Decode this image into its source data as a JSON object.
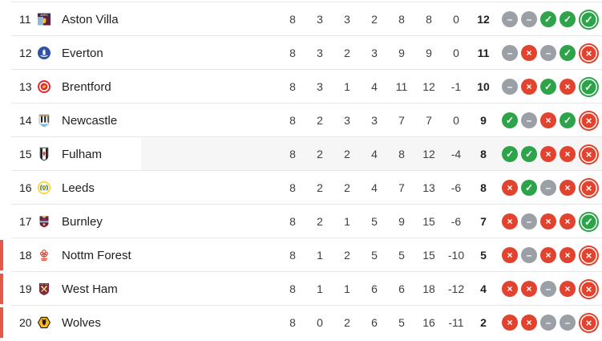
{
  "colors": {
    "win": "#2ea44a",
    "draw": "#9aa0a6",
    "loss": "#e2432f",
    "relegation": "#e25948",
    "separator": "#e8e8e8",
    "highlight": "#f6f6f6",
    "text_primary": "#202124",
    "text_stats": "#3c4043"
  },
  "form_glyphs": {
    "win": "✓",
    "draw": "–",
    "loss": "×"
  },
  "standings": {
    "rows": [
      {
        "position": "11",
        "team": "Aston Villa",
        "crest": "aston-villa-crest-icon",
        "crest_text": "AVFC",
        "stats": {
          "p": "8",
          "w": "3",
          "d": "3",
          "l": "2",
          "gf": "8",
          "ga": "8",
          "gd": "0",
          "pts": "12"
        },
        "form": [
          "draw",
          "draw",
          "win",
          "win",
          "win"
        ],
        "relegation": false,
        "highlighted": false
      },
      {
        "position": "12",
        "team": "Everton",
        "crest": "everton-crest-icon",
        "stats": {
          "p": "8",
          "w": "3",
          "d": "2",
          "l": "3",
          "gf": "9",
          "ga": "9",
          "gd": "0",
          "pts": "11"
        },
        "form": [
          "draw",
          "loss",
          "draw",
          "win",
          "loss"
        ],
        "relegation": false,
        "highlighted": false
      },
      {
        "position": "13",
        "team": "Brentford",
        "crest": "brentford-crest-icon",
        "stats": {
          "p": "8",
          "w": "3",
          "d": "1",
          "l": "4",
          "gf": "11",
          "ga": "12",
          "gd": "-1",
          "pts": "10"
        },
        "form": [
          "draw",
          "loss",
          "win",
          "loss",
          "win"
        ],
        "relegation": false,
        "highlighted": false
      },
      {
        "position": "14",
        "team": "Newcastle",
        "crest": "newcastle-crest-icon",
        "stats": {
          "p": "8",
          "w": "2",
          "d": "3",
          "l": "3",
          "gf": "7",
          "ga": "7",
          "gd": "0",
          "pts": "9"
        },
        "form": [
          "win",
          "draw",
          "loss",
          "win",
          "loss"
        ],
        "relegation": false,
        "highlighted": false
      },
      {
        "position": "15",
        "team": "Fulham",
        "crest": "fulham-crest-icon",
        "stats": {
          "p": "8",
          "w": "2",
          "d": "2",
          "l": "4",
          "gf": "8",
          "ga": "12",
          "gd": "-4",
          "pts": "8"
        },
        "form": [
          "win",
          "win",
          "loss",
          "loss",
          "loss"
        ],
        "relegation": false,
        "highlighted": true
      },
      {
        "position": "16",
        "team": "Leeds",
        "crest": "leeds-crest-icon",
        "stats": {
          "p": "8",
          "w": "2",
          "d": "2",
          "l": "4",
          "gf": "7",
          "ga": "13",
          "gd": "-6",
          "pts": "8"
        },
        "form": [
          "loss",
          "win",
          "draw",
          "loss",
          "loss"
        ],
        "relegation": false,
        "highlighted": false
      },
      {
        "position": "17",
        "team": "Burnley",
        "crest": "burnley-crest-icon",
        "stats": {
          "p": "8",
          "w": "2",
          "d": "1",
          "l": "5",
          "gf": "9",
          "ga": "15",
          "gd": "-6",
          "pts": "7"
        },
        "form": [
          "loss",
          "draw",
          "loss",
          "loss",
          "win"
        ],
        "relegation": false,
        "highlighted": false
      },
      {
        "position": "18",
        "team": "Nottm Forest",
        "crest": "nottm-forest-crest-icon",
        "stats": {
          "p": "8",
          "w": "1",
          "d": "2",
          "l": "5",
          "gf": "5",
          "ga": "15",
          "gd": "-10",
          "pts": "5"
        },
        "form": [
          "loss",
          "draw",
          "loss",
          "loss",
          "loss"
        ],
        "relegation": true,
        "highlighted": false
      },
      {
        "position": "19",
        "team": "West Ham",
        "crest": "west-ham-crest-icon",
        "stats": {
          "p": "8",
          "w": "1",
          "d": "1",
          "l": "6",
          "gf": "6",
          "ga": "18",
          "gd": "-12",
          "pts": "4"
        },
        "form": [
          "loss",
          "loss",
          "draw",
          "loss",
          "loss"
        ],
        "relegation": true,
        "highlighted": false
      },
      {
        "position": "20",
        "team": "Wolves",
        "crest": "wolves-crest-icon",
        "stats": {
          "p": "8",
          "w": "0",
          "d": "2",
          "l": "6",
          "gf": "5",
          "ga": "16",
          "gd": "-11",
          "pts": "2"
        },
        "form": [
          "loss",
          "loss",
          "draw",
          "draw",
          "loss"
        ],
        "relegation": true,
        "highlighted": false
      }
    ]
  }
}
